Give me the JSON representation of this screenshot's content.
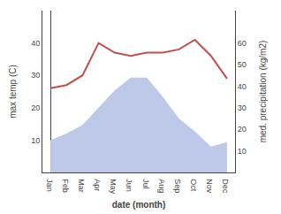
{
  "chart_data": {
    "type": "line",
    "xlabel": "date (month)",
    "ylabel": "max temp (C)",
    "y2label": "med. precipitation (kg/m2)",
    "categories": [
      "Jan",
      "Feb",
      "Mar",
      "Apr",
      "May",
      "Jun",
      "Jul",
      "Aug",
      "Sep",
      "Oct",
      "Nov",
      "Dec"
    ],
    "series": [
      {
        "type": "area",
        "axis": "y2",
        "color": "#bec8e8",
        "values": [
          15,
          18,
          22,
          30,
          38,
          44,
          44,
          35,
          25,
          19,
          12,
          14
        ]
      },
      {
        "type": "line",
        "color": "#c0504d",
        "values": [
          26,
          27,
          30,
          40,
          37,
          36,
          37,
          37,
          38,
          41,
          36,
          29
        ]
      }
    ],
    "ylim": [
      0,
      50
    ],
    "yticks": [
      10,
      20,
      30,
      40
    ],
    "y2lim": [
      0,
      75
    ],
    "y2ticks": [
      10,
      20,
      30,
      40,
      50,
      60
    ],
    "grid": false
  }
}
